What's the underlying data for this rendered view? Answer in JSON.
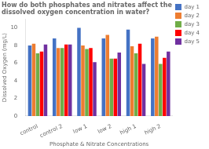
{
  "chart_data": {
    "type": "bar",
    "title": "How do both phosphates and nitrates affect the dissolved oxygen concentration in water?",
    "xlabel": "Phosphate & Nitrate Concentrations",
    "ylabel": "Dissolved Oxygen (mg/L)",
    "categories": [
      "control",
      "control 2",
      "low 1",
      "low 2",
      "high 1",
      "high 2"
    ],
    "series": [
      {
        "name": "day 1",
        "color": "#4472C4",
        "values": [
          8.0,
          8.8,
          10.0,
          8.8,
          9.8,
          8.8
        ]
      },
      {
        "name": "day 2",
        "color": "#ED7D31",
        "values": [
          8.2,
          7.7,
          8.0,
          9.2,
          7.9,
          9.0
        ]
      },
      {
        "name": "day 3",
        "color": "#70AD47",
        "values": [
          7.1,
          7.7,
          7.6,
          6.5,
          7.1,
          5.9
        ]
      },
      {
        "name": "day 4",
        "color": "#FF0000",
        "values": [
          7.3,
          8.1,
          7.7,
          6.5,
          8.2,
          6.6
        ]
      },
      {
        "name": "day 5",
        "color": "#7030A0",
        "values": [
          8.1,
          8.1,
          6.1,
          7.2,
          5.9,
          7.3
        ]
      }
    ],
    "ylim": [
      0,
      11
    ],
    "yticks": [
      0,
      2,
      4,
      6,
      8,
      10
    ],
    "grid": false,
    "legend": "right"
  }
}
